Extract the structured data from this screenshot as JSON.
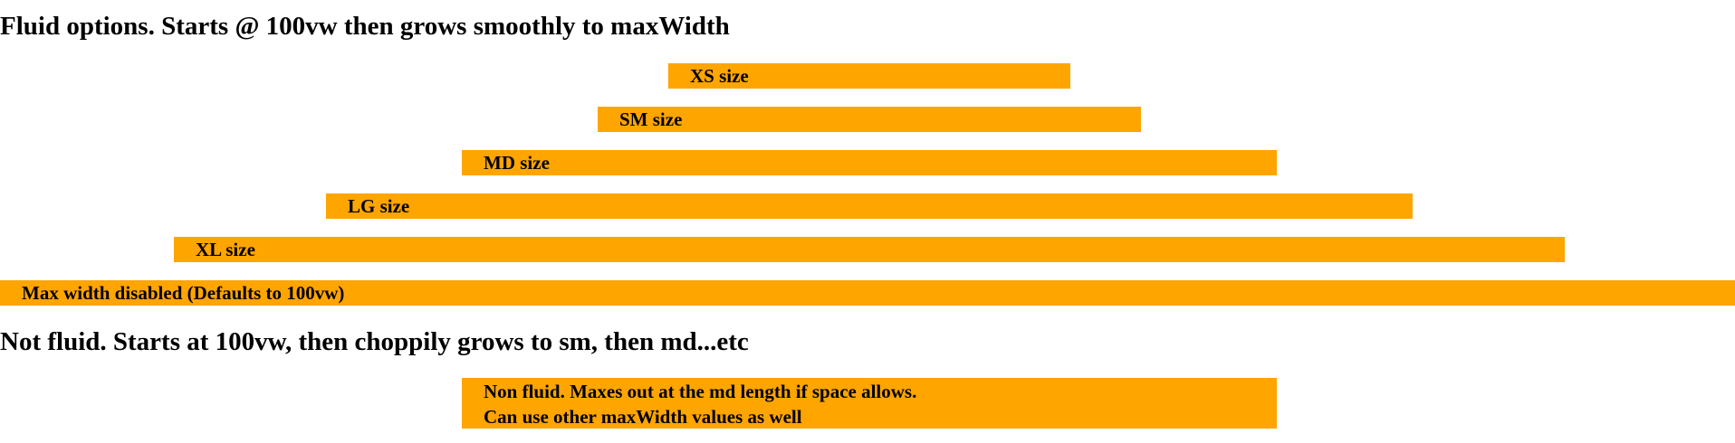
{
  "colors": {
    "bar": "#FFA500",
    "text": "#000000",
    "background": "#FFFFFF"
  },
  "fluid_section": {
    "heading": "Fluid options. Starts @ 100vw then grows smoothly to maxWidth",
    "bars": [
      {
        "id": "xs",
        "label": "XS size"
      },
      {
        "id": "sm",
        "label": "SM size"
      },
      {
        "id": "md",
        "label": "MD size"
      },
      {
        "id": "lg",
        "label": "LG size"
      },
      {
        "id": "xl",
        "label": "XL size"
      },
      {
        "id": "max",
        "label": "Max width disabled (Defaults to 100vw)"
      }
    ]
  },
  "non_fluid_section": {
    "heading": "Not fluid. Starts at 100vw, then choppily grows to sm, then md...etc",
    "bar": {
      "line1": "Non fluid. Maxes out at the md length if space allows.",
      "line2": "Can use other maxWidth values as well"
    }
  }
}
